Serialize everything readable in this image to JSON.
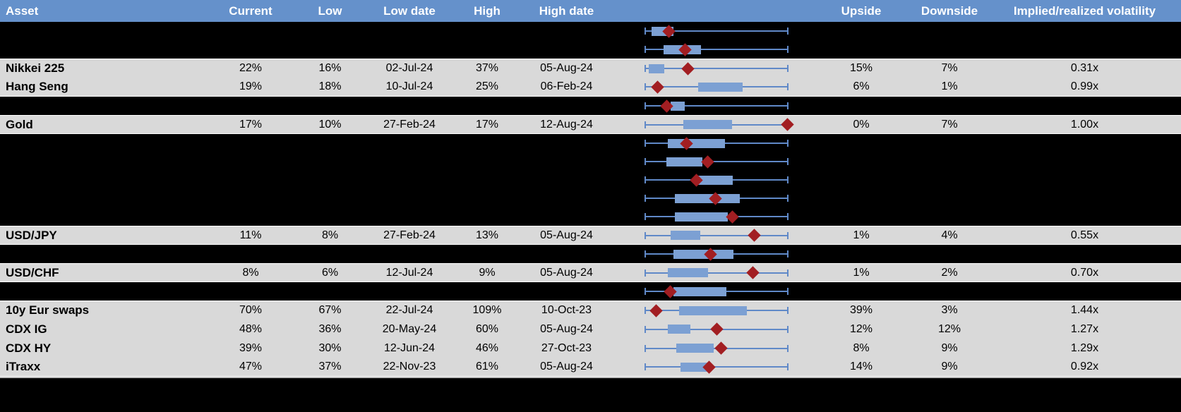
{
  "colors": {
    "header_bg": "#6591CB",
    "header_text": "#FFFFFF",
    "data_row_bg": "#D9D9D9",
    "hidden_row_bg": "#000000",
    "row_border": "#FFFFFF",
    "whisker_line": "#6089C8",
    "box_fill": "#7CA0D3",
    "diamond_fill": "#A21E22",
    "divider": "#BFBFBF",
    "text": "#000000"
  },
  "chart_data": {
    "type": "table",
    "description": "Implied volatility table with embedded box-and-whisker plots; whisker spans each asset's low-high range (0 to 1), box marks the interquartile band, red diamond marks the current level. Several rows are redacted (black) showing only the plot.",
    "columns": [
      {
        "key": "asset",
        "label": "Asset"
      },
      {
        "key": "current",
        "label": "Current"
      },
      {
        "key": "low",
        "label": "Low"
      },
      {
        "key": "lowdate",
        "label": "Low date"
      },
      {
        "key": "high",
        "label": "High"
      },
      {
        "key": "highdate",
        "label": "High date"
      },
      {
        "key": "plot",
        "label": ""
      },
      {
        "key": "upside",
        "label": "Upside"
      },
      {
        "key": "downside",
        "label": "Downside"
      },
      {
        "key": "implied",
        "label": "Implied/realized volatility"
      }
    ],
    "rows": [
      {
        "type": "hidden",
        "plot": {
          "whisker": [
            0,
            1
          ],
          "box": [
            0.05,
            0.2
          ],
          "marker": 0.17
        }
      },
      {
        "type": "hidden",
        "plot": {
          "whisker": [
            0,
            1
          ],
          "box": [
            0.13,
            0.39
          ],
          "marker": 0.28
        }
      },
      {
        "type": "data",
        "asset": "Nikkei 225",
        "current": "22%",
        "low": "16%",
        "lowdate": "02-Jul-24",
        "high": "37%",
        "highdate": "05-Aug-24",
        "upside": "15%",
        "downside": "7%",
        "implied": "0.31x",
        "plot": {
          "whisker": [
            0,
            1
          ],
          "box": [
            0.03,
            0.14
          ],
          "marker": 0.3
        }
      },
      {
        "type": "data",
        "asset": "Hang Seng",
        "current": "19%",
        "low": "18%",
        "lowdate": "10-Jul-24",
        "high": "25%",
        "highdate": "06-Feb-24",
        "upside": "6%",
        "downside": "1%",
        "implied": "0.99x",
        "plot": {
          "whisker": [
            0,
            1
          ],
          "box": [
            0.37,
            0.68
          ],
          "marker": 0.09
        }
      },
      {
        "type": "hidden",
        "plot": {
          "whisker": [
            0,
            1
          ],
          "box": [
            0.18,
            0.28
          ],
          "marker": 0.155
        }
      },
      {
        "type": "data",
        "asset": "Gold",
        "current": "17%",
        "low": "10%",
        "lowdate": "27-Feb-24",
        "high": "17%",
        "highdate": "12-Aug-24",
        "upside": "0%",
        "downside": "7%",
        "implied": "1.00x",
        "plot": {
          "whisker": [
            0,
            1
          ],
          "box": [
            0.27,
            0.61
          ],
          "marker": 0.99
        }
      },
      {
        "type": "hidden",
        "plot": {
          "whisker": [
            0,
            1
          ],
          "box": [
            0.16,
            0.56
          ],
          "marker": 0.29
        }
      },
      {
        "type": "hidden",
        "plot": {
          "whisker": [
            0,
            1
          ],
          "box": [
            0.15,
            0.4
          ],
          "marker": 0.44
        }
      },
      {
        "type": "hidden",
        "plot": {
          "whisker": [
            0,
            1
          ],
          "box": [
            0.37,
            0.61
          ],
          "marker": 0.36
        }
      },
      {
        "type": "hidden",
        "plot": {
          "whisker": [
            0,
            1
          ],
          "box": [
            0.21,
            0.66
          ],
          "marker": 0.49
        }
      },
      {
        "type": "hidden",
        "plot": {
          "whisker": [
            0,
            1
          ],
          "box": [
            0.21,
            0.58
          ],
          "marker": 0.61
        }
      },
      {
        "type": "data",
        "asset": "USD/JPY",
        "current": "11%",
        "low": "8%",
        "lowdate": "27-Feb-24",
        "high": "13%",
        "highdate": "05-Aug-24",
        "upside": "1%",
        "downside": "4%",
        "implied": "0.55x",
        "plot": {
          "whisker": [
            0,
            1
          ],
          "box": [
            0.18,
            0.39
          ],
          "marker": 0.76
        }
      },
      {
        "type": "hidden",
        "plot": {
          "whisker": [
            0,
            1
          ],
          "box": [
            0.2,
            0.62
          ],
          "marker": 0.46
        }
      },
      {
        "type": "data",
        "asset": "USD/CHF",
        "current": "8%",
        "low": "6%",
        "lowdate": "12-Jul-24",
        "high": "9%",
        "highdate": "05-Aug-24",
        "upside": "1%",
        "downside": "2%",
        "implied": "0.70x",
        "plot": {
          "whisker": [
            0,
            1
          ],
          "box": [
            0.16,
            0.44
          ],
          "marker": 0.75
        }
      },
      {
        "type": "hidden",
        "plot": {
          "whisker": [
            0,
            1
          ],
          "box": [
            0.2,
            0.57
          ],
          "marker": 0.18
        }
      },
      {
        "type": "data",
        "asset": "10y Eur swaps",
        "current": "70%",
        "low": "67%",
        "lowdate": "22-Jul-24",
        "high": "109%",
        "highdate": "10-Oct-23",
        "upside": "39%",
        "downside": "3%",
        "implied": "1.44x",
        "plot": {
          "whisker": [
            0,
            1
          ],
          "box": [
            0.24,
            0.71
          ],
          "marker": 0.08
        }
      },
      {
        "type": "data",
        "asset": "CDX IG",
        "current": "48%",
        "low": "36%",
        "lowdate": "20-May-24",
        "high": "60%",
        "highdate": "05-Aug-24",
        "upside": "12%",
        "downside": "12%",
        "implied": "1.27x",
        "plot": {
          "whisker": [
            0,
            1
          ],
          "box": [
            0.16,
            0.32
          ],
          "marker": 0.5
        }
      },
      {
        "type": "data",
        "asset": "CDX HY",
        "current": "39%",
        "low": "30%",
        "lowdate": "12-Jun-24",
        "high": "46%",
        "highdate": "27-Oct-23",
        "upside": "8%",
        "downside": "9%",
        "implied": "1.29x",
        "plot": {
          "whisker": [
            0,
            1
          ],
          "box": [
            0.22,
            0.48
          ],
          "marker": 0.53
        }
      },
      {
        "type": "data",
        "asset": "iTraxx",
        "current": "47%",
        "low": "37%",
        "lowdate": "22-Nov-23",
        "high": "61%",
        "highdate": "05-Aug-24",
        "upside": "14%",
        "downside": "9%",
        "implied": "0.92x",
        "plot": {
          "whisker": [
            0,
            1
          ],
          "box": [
            0.25,
            0.44
          ],
          "marker": 0.45
        }
      }
    ]
  }
}
